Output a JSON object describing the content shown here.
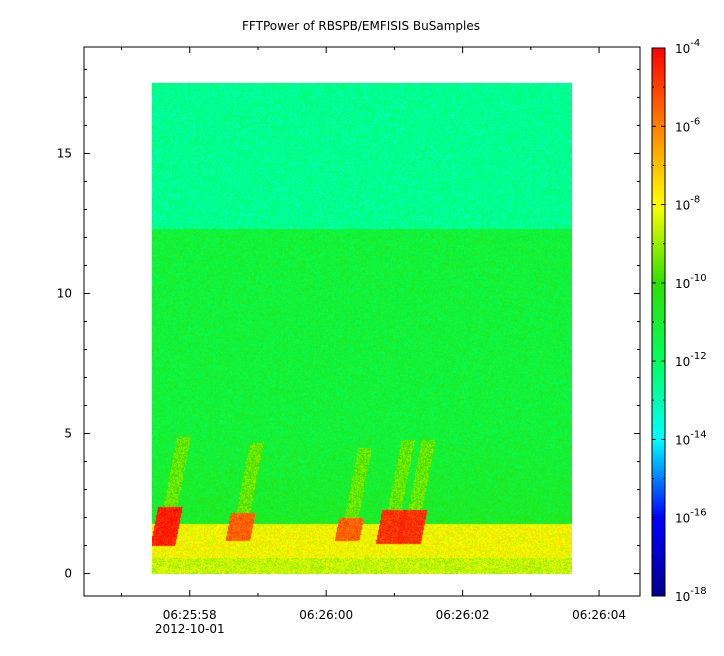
{
  "chart_data": {
    "type": "heatmap",
    "title": "FFTPower of RBSPB/EMFISIS  BuSamples",
    "xlabel": "",
    "ylabel": "",
    "x_ticks": [
      {
        "value": "06:25:58",
        "sub": "2012-10-01"
      },
      {
        "value": "06:26:00",
        "sub": ""
      },
      {
        "value": "06:26:02",
        "sub": ""
      },
      {
        "value": "06:26:04",
        "sub": ""
      }
    ],
    "x_range_seconds_from_0625": [
      56.45,
      64.6
    ],
    "data_x_extent_seconds_from_0625": [
      57.45,
      63.6
    ],
    "y_ticks": [
      "0",
      "5",
      "10",
      "15"
    ],
    "y_range": [
      -0.8,
      18.8
    ],
    "data_y_extent": [
      0,
      17.5
    ],
    "colorbar": {
      "scale": "log",
      "range": [
        1e-18,
        0.0001
      ],
      "tick_labels": [
        {
          "base": "10",
          "exp": "-4",
          "log": -4
        },
        {
          "base": "10",
          "exp": "-6",
          "log": -6
        },
        {
          "base": "10",
          "exp": "-8",
          "log": -8
        },
        {
          "base": "10",
          "exp": "-10",
          "log": -10
        },
        {
          "base": "10",
          "exp": "-12",
          "log": -12
        },
        {
          "base": "10",
          "exp": "-14",
          "log": -14
        },
        {
          "base": "10",
          "exp": "-16",
          "log": -16
        },
        {
          "base": "10",
          "exp": "-18",
          "log": -18
        }
      ],
      "colors": [
        "#00008f",
        "#0000ff",
        "#00ffff",
        "#00ff60",
        "#30e000",
        "#ffff00",
        "#ff8000",
        "#ff0000"
      ]
    },
    "background_power_log": {
      "above_12_3": -12.6,
      "between_1_8_and_12_3": -11.2,
      "below_1_8": -8.6
    },
    "bursts": [
      {
        "time_s": 57.6,
        "freq_band": [
          1.0,
          2.4
        ],
        "log_power": -4.5
      },
      {
        "time_s": 58.7,
        "freq_band": [
          1.2,
          2.2
        ],
        "log_power": -5.5
      },
      {
        "time_s": 60.3,
        "freq_band": [
          1.2,
          2.0
        ],
        "log_power": -5.5
      },
      {
        "time_s": 60.9,
        "freq_band": [
          1.1,
          2.3
        ],
        "log_power": -4.8
      },
      {
        "time_s": 61.2,
        "freq_band": [
          1.1,
          2.3
        ],
        "log_power": -4.8
      }
    ]
  }
}
